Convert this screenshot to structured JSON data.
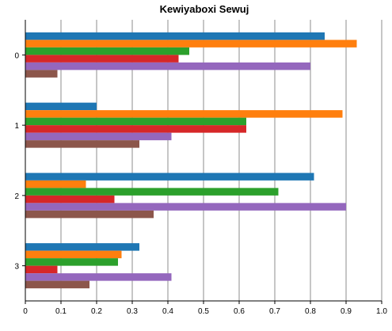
{
  "chart_data": {
    "type": "bar",
    "orientation": "horizontal",
    "title": "Kewiyaboxi Sewuj",
    "xlabel": "",
    "ylabel": "",
    "categories": [
      "0",
      "1",
      "2",
      "3"
    ],
    "xlim": [
      0,
      1.0
    ],
    "xticks": [
      "0",
      "0.1",
      "0.2",
      "0.3",
      "0.4",
      "0.5",
      "0.6",
      "0.7",
      "0.8",
      "0.9",
      "1.0"
    ],
    "grid": "vertical",
    "legend": "none",
    "series": [
      {
        "color": "#1f77b4",
        "values": [
          0.84,
          0.2,
          0.81,
          0.32
        ]
      },
      {
        "color": "#ff7f0e",
        "values": [
          0.93,
          0.89,
          0.17,
          0.27
        ]
      },
      {
        "color": "#2ca02c",
        "values": [
          0.46,
          0.62,
          0.71,
          0.26
        ]
      },
      {
        "color": "#d62728",
        "values": [
          0.43,
          0.62,
          0.25,
          0.09
        ]
      },
      {
        "color": "#9467bd",
        "values": [
          0.8,
          0.41,
          0.9,
          0.41
        ]
      },
      {
        "color": "#8c564b",
        "values": [
          0.09,
          0.32,
          0.36,
          0.18
        ]
      }
    ]
  }
}
